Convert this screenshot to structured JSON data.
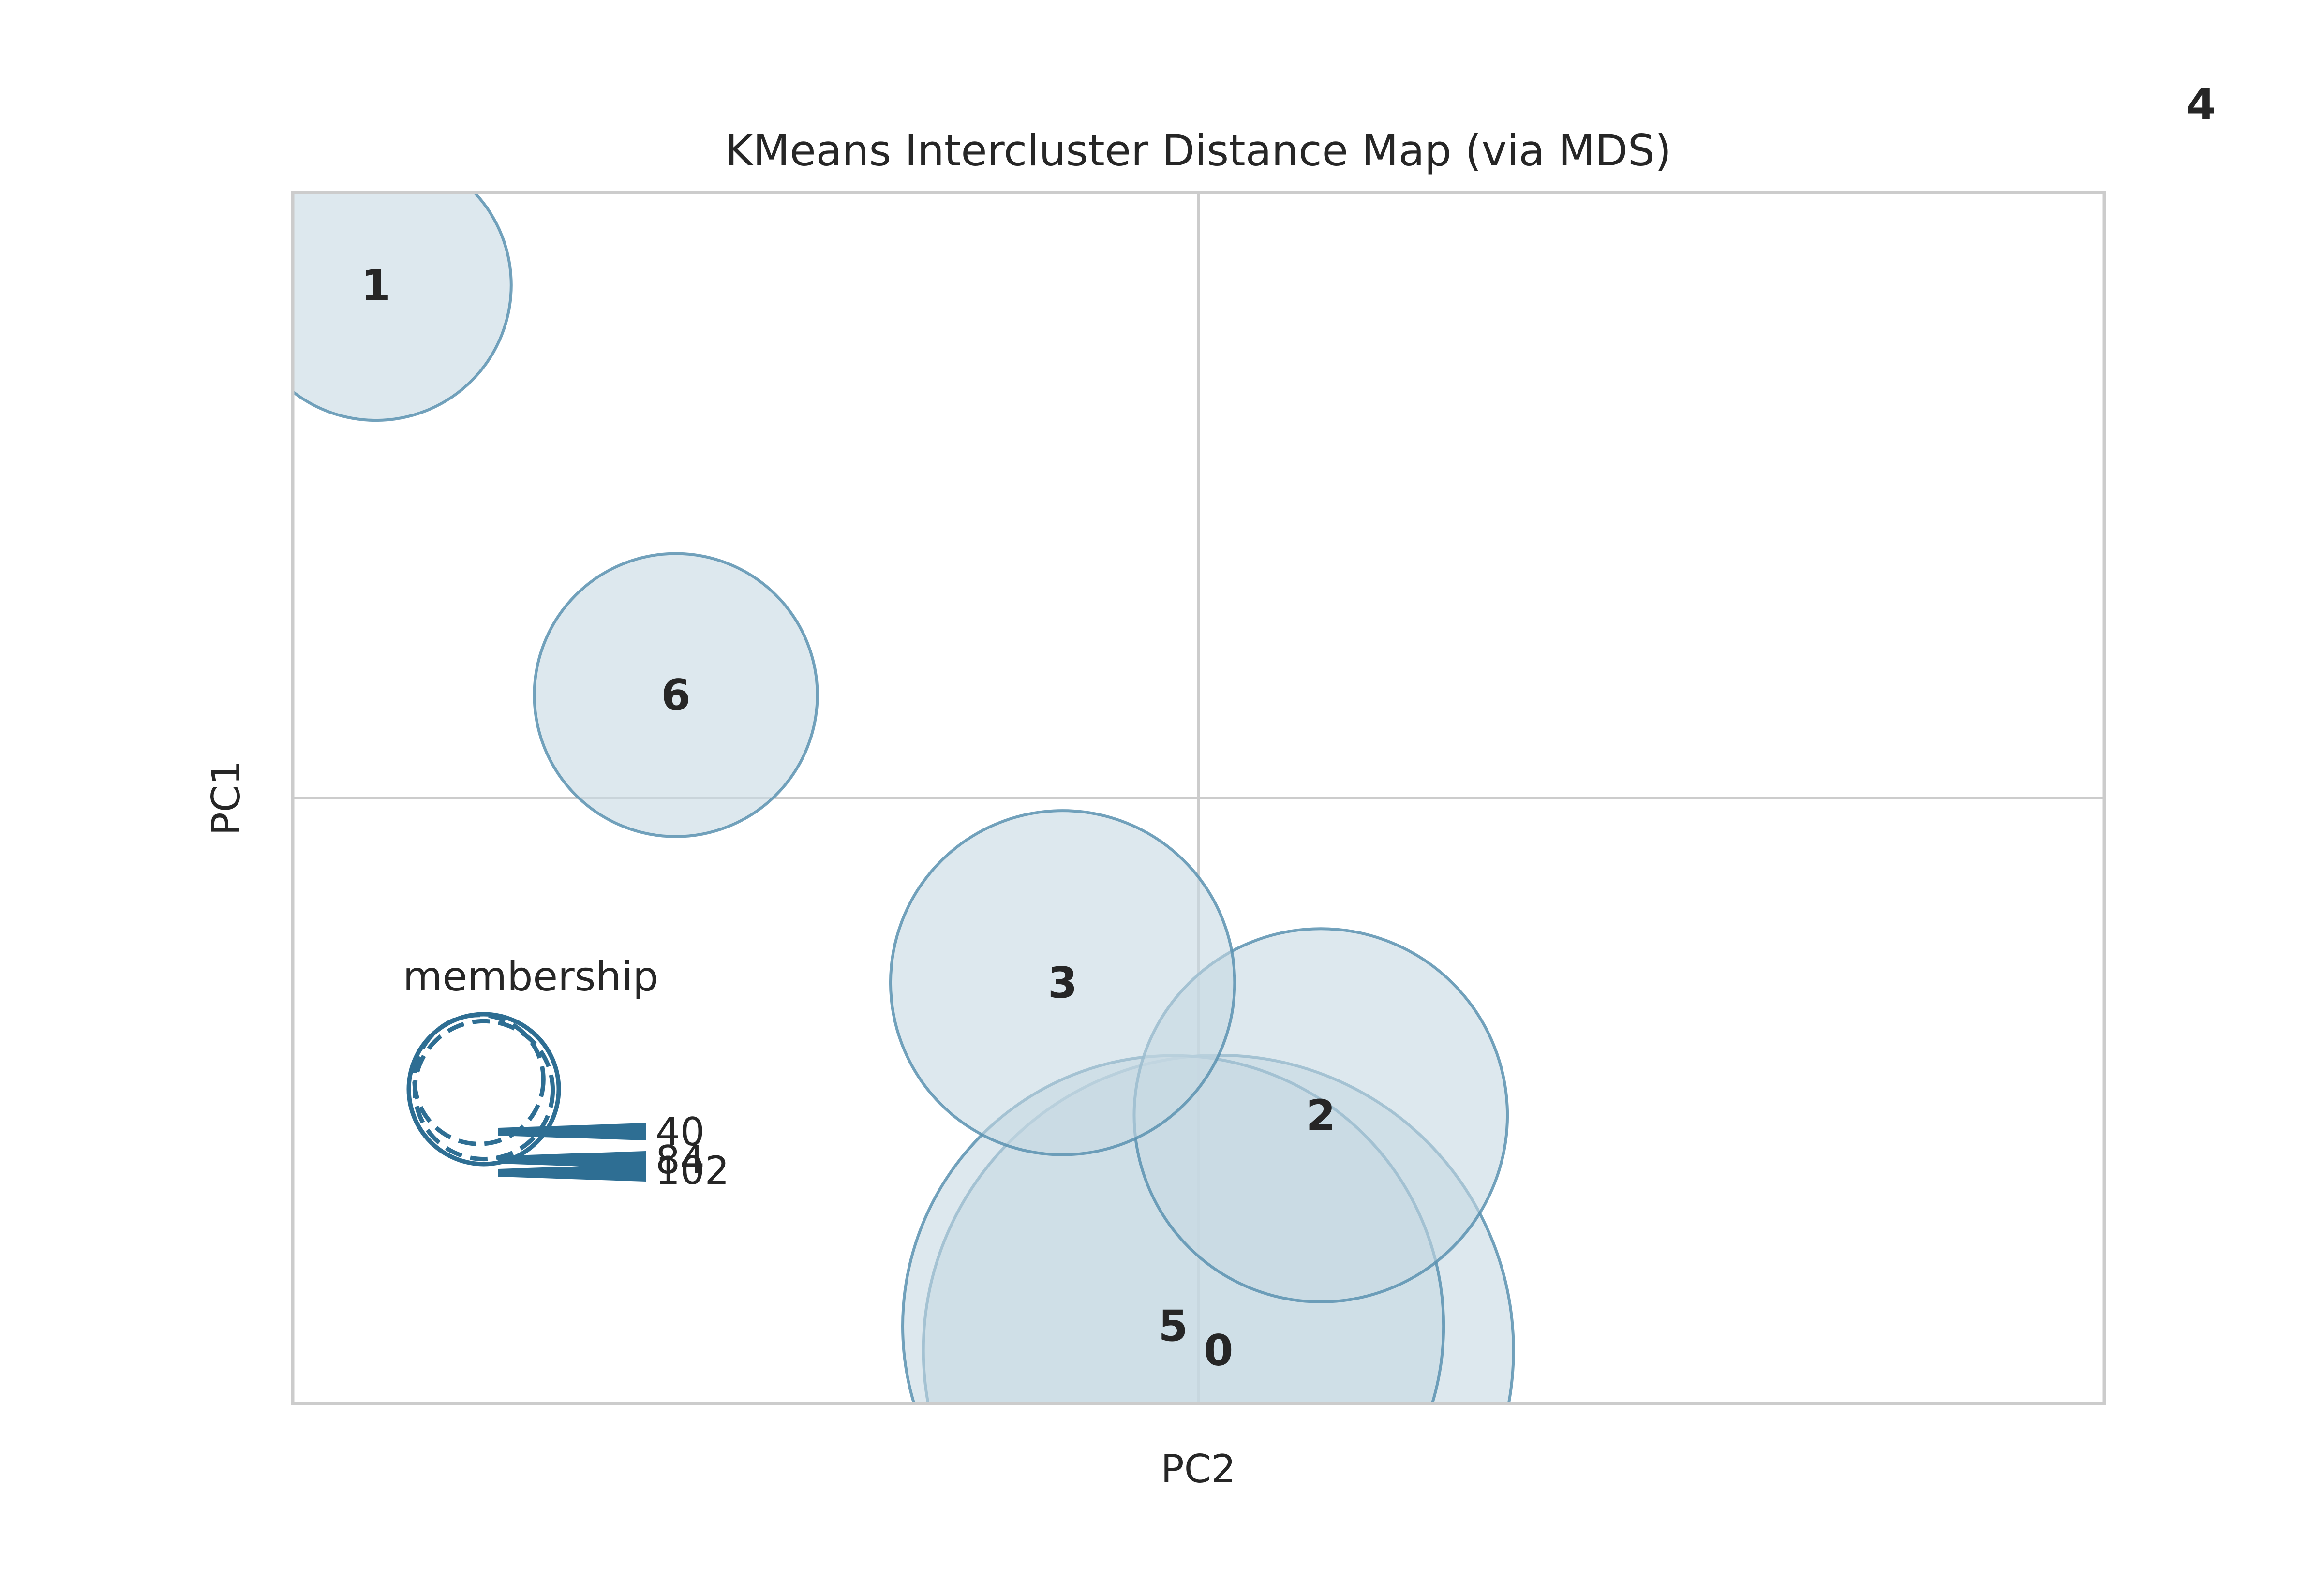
{
  "chart_data": {
    "type": "scatter",
    "title": "KMeans Intercluster Distance Map (via MDS)",
    "xlabel": "PC2",
    "ylabel": "PC1",
    "xlim": [
      -1,
      1
    ],
    "ylim": [
      -1,
      1
    ],
    "grid": true,
    "clusters": [
      {
        "label": "0",
        "x": 0.022,
        "y": -0.912,
        "size": 100
      },
      {
        "label": "1",
        "x": -0.908,
        "y": 0.847,
        "size": 21
      },
      {
        "label": "2",
        "x": 0.135,
        "y": -0.524,
        "size": 40
      },
      {
        "label": "3",
        "x": -0.15,
        "y": -0.305,
        "size": 34
      },
      {
        "label": "4",
        "x": 1.107,
        "y": 1.146,
        "size": 3
      },
      {
        "label": "5",
        "x": -0.028,
        "y": -0.872,
        "size": 84
      },
      {
        "label": "6",
        "x": -0.577,
        "y": 0.17,
        "size": 23
      }
    ],
    "legend": {
      "title": "membership",
      "placement": "lower-left",
      "entries": [
        "40",
        "84",
        "102"
      ]
    },
    "colors": {
      "fill": "#c6d8e3",
      "edge": "#5a92b0",
      "legend": "#2e6e93",
      "grid": "#cccccc",
      "frame": "#cccccc"
    }
  }
}
